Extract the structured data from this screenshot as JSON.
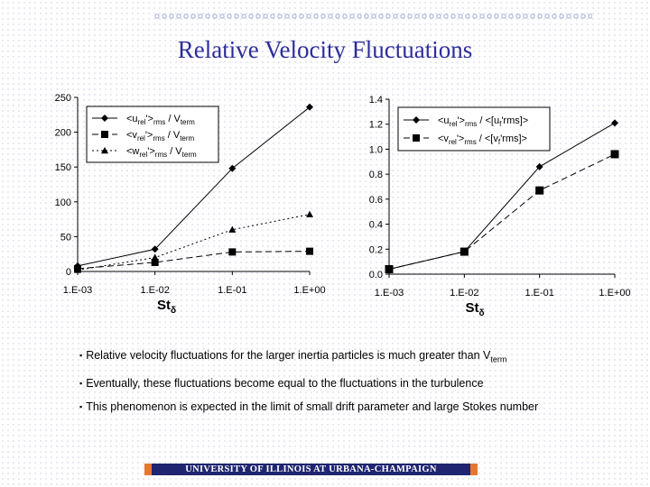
{
  "slide": {
    "title": "Relative Velocity Fluctuations",
    "bullets": [
      {
        "text": "Relative velocity fluctuations for the larger inertia particles is much greater than V",
        "sub": "term"
      },
      {
        "text": "Eventually, these fluctuations become equal to the fluctuations in the turbulence",
        "sub": ""
      },
      {
        "text": "This phenomenon is expected in the limit of small drift parameter and large Stokes number",
        "sub": ""
      }
    ],
    "footer": "UNIVERSITY OF ILLINOIS AT URBANA-CHAMPAIGN"
  },
  "chart_data": [
    {
      "type": "line",
      "x_scale": "log",
      "x_ticks": [
        "1.E-03",
        "1.E-02",
        "1.E-01",
        "1.E+00"
      ],
      "x": [
        0.001,
        0.01,
        0.1,
        1.0
      ],
      "y_ticks": [
        "0",
        "50",
        "100",
        "150",
        "200",
        "250"
      ],
      "ylim": [
        0,
        250
      ],
      "xlabel": "St",
      "xlabel_sub": "δ",
      "grid": false,
      "legend_position": "top-left",
      "series": [
        {
          "name": "<urel'>rms / Vterm",
          "legend": {
            "a": "<u",
            "b": "rel",
            "c": "'>",
            "d": "rms",
            "e": " / V",
            "f": "term",
            "g": ""
          },
          "marker": "diamond",
          "dash": "solid",
          "values": [
            8,
            32,
            148,
            236
          ]
        },
        {
          "name": "<vrel'>rms / Vterm",
          "legend": {
            "a": "<v",
            "b": "rel",
            "c": "'>",
            "d": "rms",
            "e": " / V",
            "f": "term",
            "g": ""
          },
          "marker": "square",
          "dash": "dashed",
          "values": [
            4,
            13,
            28,
            29
          ]
        },
        {
          "name": "<wrel'>rms / Vterm",
          "legend": {
            "a": "<w",
            "b": "rel",
            "c": "'>",
            "d": "rms",
            "e": " / V",
            "f": "term",
            "g": ""
          },
          "marker": "triangle",
          "dash": "dotted",
          "values": [
            2,
            20,
            60,
            82
          ]
        }
      ]
    },
    {
      "type": "line",
      "x_scale": "log",
      "x_ticks": [
        "1.E-03",
        "1.E-02",
        "1.E-01",
        "1.E+00"
      ],
      "x": [
        0.001,
        0.01,
        0.1,
        1.0
      ],
      "y_ticks": [
        "0.0",
        "0.2",
        "0.4",
        "0.6",
        "0.8",
        "1.0",
        "1.2",
        "1.4"
      ],
      "ylim": [
        0,
        1.4
      ],
      "xlabel": "St",
      "xlabel_sub": "δ",
      "grid": false,
      "legend_position": "top-left",
      "series": [
        {
          "name": "<urel'>rms / <[uf'rms]>",
          "legend": {
            "a": "<u",
            "b": "rel",
            "c": "'>",
            "d": "rms",
            "e": " / <[u",
            "f": "f",
            "g": "'rms]>"
          },
          "marker": "diamond",
          "dash": "solid",
          "values": [
            0.04,
            0.18,
            0.86,
            1.21
          ]
        },
        {
          "name": "<vrel'>rms / <[vf'rms]>",
          "legend": {
            "a": "<v",
            "b": "rel",
            "c": "'>",
            "d": "rms",
            "e": " / <[v",
            "f": "f",
            "g": "'rms]>"
          },
          "marker": "square",
          "dash": "dashed",
          "values": [
            0.04,
            0.18,
            0.67,
            0.96
          ]
        }
      ]
    }
  ]
}
